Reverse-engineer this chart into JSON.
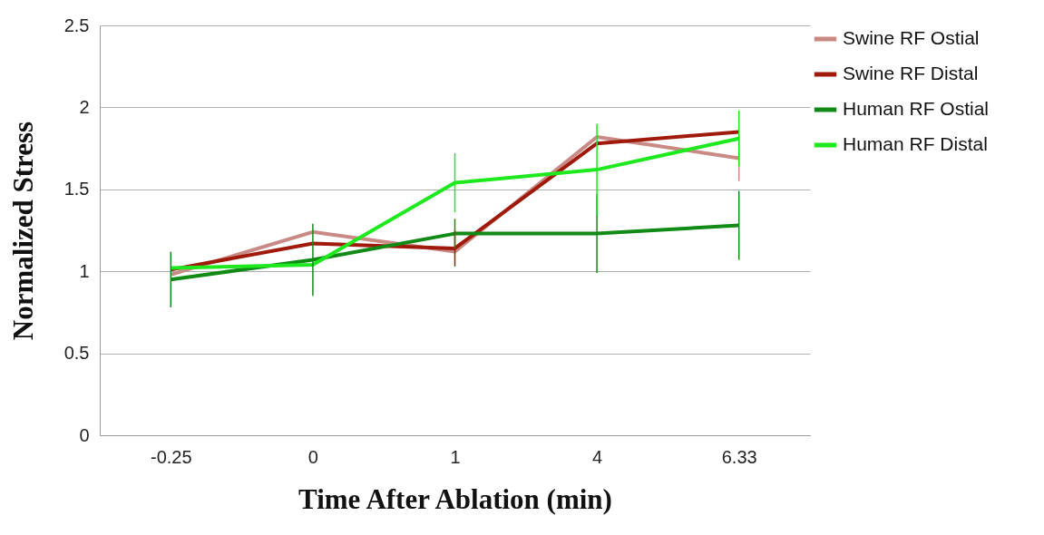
{
  "chart_data": {
    "type": "line",
    "xlabel": "Time After Ablation (min)",
    "ylabel": "Normalized Stress",
    "categories": [
      "-0.25",
      "0",
      "1",
      "4",
      "6.33"
    ],
    "series": [
      {
        "name": "Swine RF Ostial",
        "color": "#c98a85",
        "values": [
          0.98,
          1.24,
          1.12,
          1.82,
          1.69
        ],
        "errors": [
          null,
          null,
          null,
          null,
          0.14
        ]
      },
      {
        "name": "Swine RF Distal",
        "color": "#a01a0c",
        "values": [
          1.01,
          1.17,
          1.14,
          1.78,
          1.85
        ],
        "errors": [
          null,
          null,
          0.11,
          null,
          null
        ]
      },
      {
        "name": "Human RF Ostial",
        "color": "#118a16",
        "values": [
          0.95,
          1.07,
          1.23,
          1.23,
          1.28
        ],
        "errors": [
          0.17,
          0.22,
          0.09,
          0.24,
          0.21
        ]
      },
      {
        "name": "Human RF Distal",
        "color": "#1ee81e",
        "values": [
          1.02,
          1.04,
          1.54,
          1.62,
          1.81
        ],
        "errors": [
          null,
          null,
          0.18,
          0.28,
          0.17
        ]
      }
    ],
    "ylim": [
      0,
      2.5
    ],
    "yticks": [
      0,
      0.5,
      1,
      1.5,
      2,
      2.5
    ],
    "grid": "y",
    "legend": "right",
    "marker": "none",
    "line_style": "solid"
  }
}
